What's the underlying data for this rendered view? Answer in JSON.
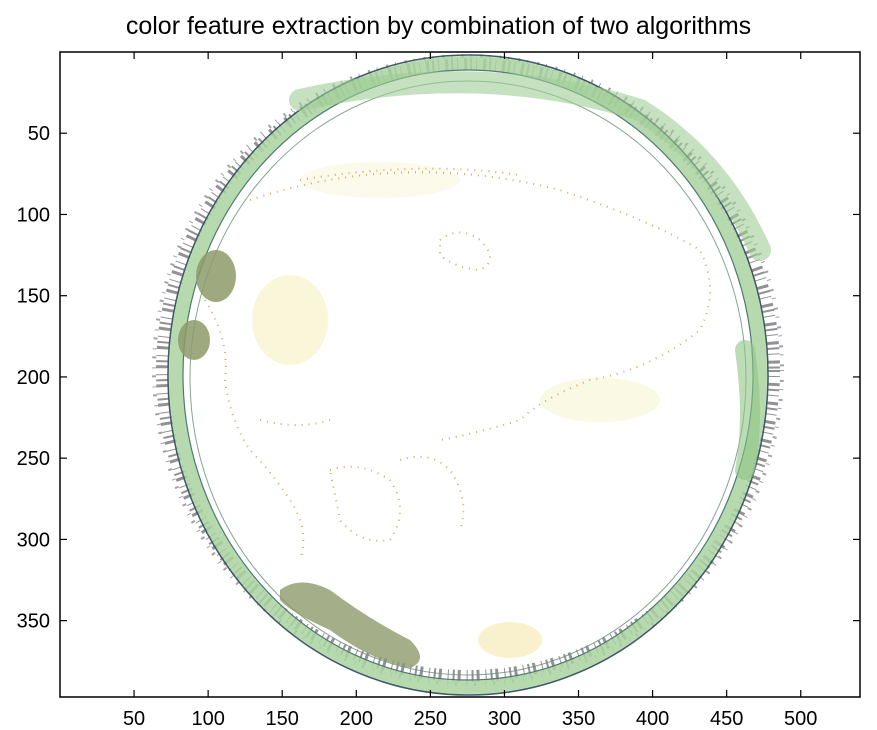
{
  "title": "color feature extraction by combination of two algorithms",
  "x_axis": {
    "range": [
      0,
      540
    ],
    "ticks": [
      50,
      100,
      150,
      200,
      250,
      300,
      350,
      400,
      450,
      500
    ]
  },
  "y_axis": {
    "range": [
      0,
      397
    ],
    "direction": "top-down",
    "ticks": [
      50,
      100,
      150,
      200,
      250,
      300,
      350
    ]
  },
  "colors": {
    "rim_green": "#a9d3a0",
    "rim_dark": "#3f5b66",
    "speckle": "#3a3640",
    "olive_blob": "#8d9a6a",
    "pale_yellow": "#f8f5d6",
    "dot_orange": "#c8a25a"
  }
}
